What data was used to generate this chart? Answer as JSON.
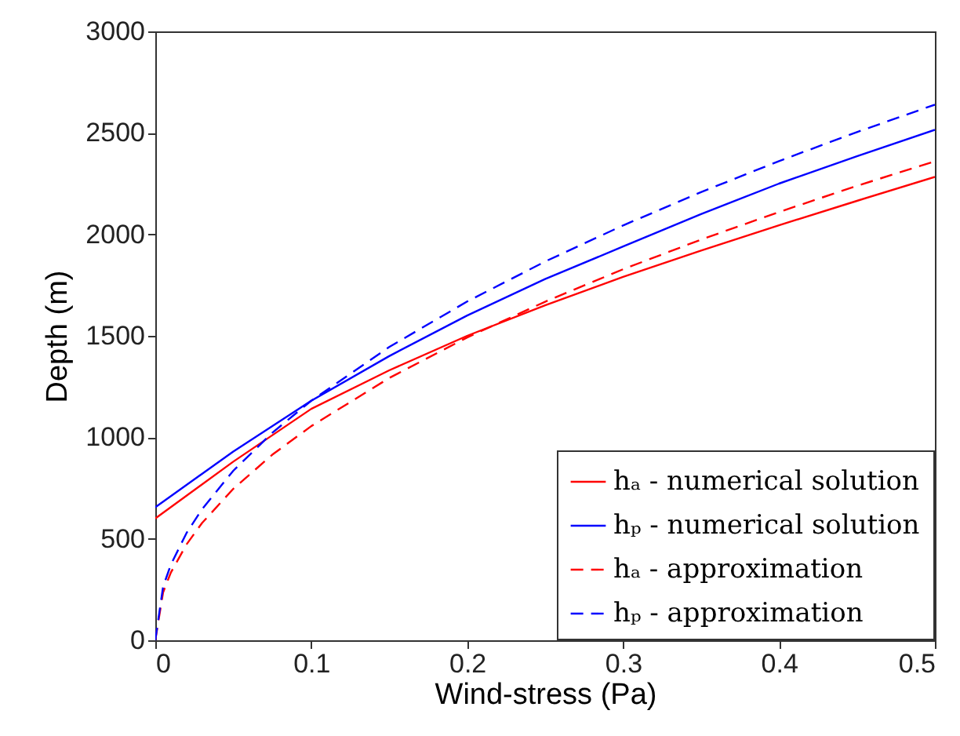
{
  "chart_data": {
    "type": "line",
    "xlabel": "Wind-stress (Pa)",
    "ylabel": "Depth (m)",
    "xlim": [
      0,
      0.5
    ],
    "xticks": [
      0,
      0.1,
      0.2,
      0.3,
      0.4,
      0.5
    ],
    "ylim": [
      0,
      3000
    ],
    "yticks": [
      0,
      500,
      1000,
      1500,
      2000,
      2500,
      3000
    ],
    "grid": false,
    "legend": "bottom right",
    "series": [
      {
        "name": "hₐ - numerical solution",
        "color": "#ff0000",
        "line_style": "solid",
        "x": [
          0,
          0.05,
          0.1,
          0.15,
          0.2,
          0.25,
          0.3,
          0.35,
          0.4,
          0.45,
          0.5
        ],
        "values": [
          600,
          880,
          1140,
          1330,
          1500,
          1650,
          1790,
          1920,
          2045,
          2165,
          2283
        ]
      },
      {
        "name": "hₚ - numerical solution",
        "color": "#0000ff",
        "line_style": "solid",
        "x": [
          0,
          0.05,
          0.1,
          0.15,
          0.2,
          0.25,
          0.3,
          0.35,
          0.4,
          0.45,
          0.5
        ],
        "values": [
          655,
          930,
          1180,
          1400,
          1600,
          1780,
          1940,
          2100,
          2250,
          2385,
          2515
        ]
      },
      {
        "name": "hₐ - approximation",
        "color": "#ff0000",
        "line_style": "dashed",
        "x": [
          0,
          0.005,
          0.01,
          0.02,
          0.03,
          0.05,
          0.075,
          0.1,
          0.15,
          0.2,
          0.25,
          0.3,
          0.35,
          0.4,
          0.45,
          0.5
        ],
        "values": [
          0,
          236,
          334,
          472,
          578,
          746,
          914,
          1055,
          1292,
          1492,
          1668,
          1828,
          1974,
          2110,
          2239,
          2360
        ]
      },
      {
        "name": "hₚ - approximation",
        "color": "#0000ff",
        "line_style": "dashed",
        "x": [
          0,
          0.005,
          0.01,
          0.02,
          0.03,
          0.05,
          0.075,
          0.1,
          0.15,
          0.2,
          0.25,
          0.3,
          0.35,
          0.4,
          0.45,
          0.5
        ],
        "values": [
          0,
          264,
          373,
          528,
          646,
          835,
          1022,
          1180,
          1445,
          1669,
          1866,
          2044,
          2208,
          2361,
          2504,
          2639
        ]
      }
    ]
  }
}
